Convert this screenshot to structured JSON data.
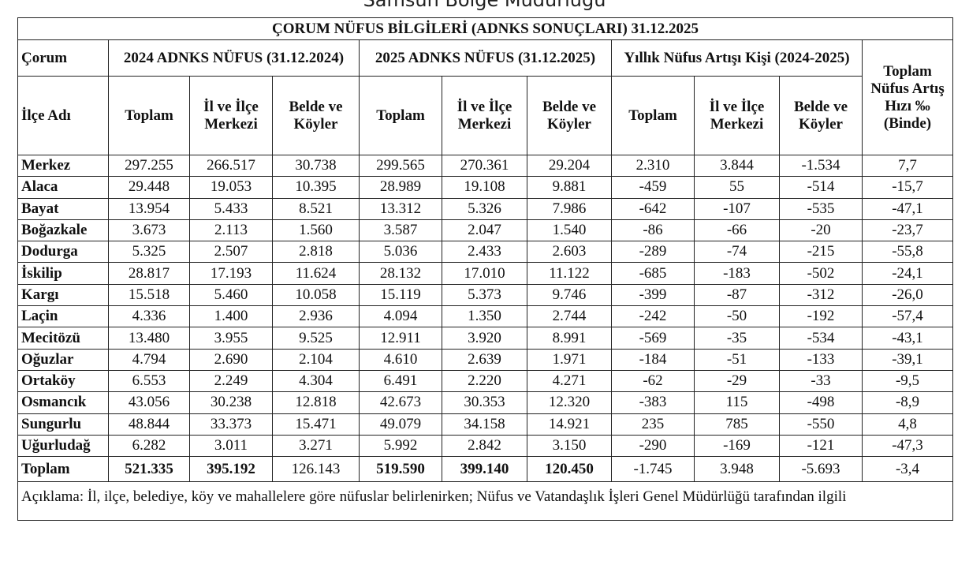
{
  "organization": "Samsun Bölge Müdürlüğü",
  "title": "ÇORUM NÜFUS BİLGİLERİ (ADNKS SONUÇLARI) 31.12.2025",
  "headers": {
    "province": "Çorum",
    "district": "İlçe Adı",
    "group2024": "2024 ADNKS NÜFUS (31.12.2024)",
    "group2025": "2025 ADNKS NÜFUS (31.12.2025)",
    "groupChange": "Yıllık Nüfus Artışı Kişi (2024-2025)",
    "rate": "Toplam Nüfus Artış Hızı ‰ (Binde)",
    "total": "Toplam",
    "center": "İl ve İlçe Merkezi",
    "villages": "Belde ve Köyler"
  },
  "rows": [
    [
      "Merkez",
      "297.255",
      "266.517",
      "30.738",
      "299.565",
      "270.361",
      "29.204",
      "2.310",
      "3.844",
      "-1.534",
      "7,7"
    ],
    [
      "Alaca",
      "29.448",
      "19.053",
      "10.395",
      "28.989",
      "19.108",
      "9.881",
      "-459",
      "55",
      "-514",
      "-15,7"
    ],
    [
      "Bayat",
      "13.954",
      "5.433",
      "8.521",
      "13.312",
      "5.326",
      "7.986",
      "-642",
      "-107",
      "-535",
      "-47,1"
    ],
    [
      "Boğazkale",
      "3.673",
      "2.113",
      "1.560",
      "3.587",
      "2.047",
      "1.540",
      "-86",
      "-66",
      "-20",
      "-23,7"
    ],
    [
      "Dodurga",
      "5.325",
      "2.507",
      "2.818",
      "5.036",
      "2.433",
      "2.603",
      "-289",
      "-74",
      "-215",
      "-55,8"
    ],
    [
      "İskilip",
      "28.817",
      "17.193",
      "11.624",
      "28.132",
      "17.010",
      "11.122",
      "-685",
      "-183",
      "-502",
      "-24,1"
    ],
    [
      "Kargı",
      "15.518",
      "5.460",
      "10.058",
      "15.119",
      "5.373",
      "9.746",
      "-399",
      "-87",
      "-312",
      "-26,0"
    ],
    [
      "Laçin",
      "4.336",
      "1.400",
      "2.936",
      "4.094",
      "1.350",
      "2.744",
      "-242",
      "-50",
      "-192",
      "-57,4"
    ],
    [
      "Mecitözü",
      "13.480",
      "3.955",
      "9.525",
      "12.911",
      "3.920",
      "8.991",
      "-569",
      "-35",
      "-534",
      "-43,1"
    ],
    [
      "Oğuzlar",
      "4.794",
      "2.690",
      "2.104",
      "4.610",
      "2.639",
      "1.971",
      "-184",
      "-51",
      "-133",
      "-39,1"
    ],
    [
      "Ortaköy",
      "6.553",
      "2.249",
      "4.304",
      "6.491",
      "2.220",
      "4.271",
      "-62",
      "-29",
      "-33",
      "-9,5"
    ],
    [
      "Osmancık",
      "43.056",
      "30.238",
      "12.818",
      "42.673",
      "30.353",
      "12.320",
      "-383",
      "115",
      "-498",
      "-8,9"
    ],
    [
      "Sungurlu",
      "48.844",
      "33.373",
      "15.471",
      "49.079",
      "34.158",
      "14.921",
      "235",
      "785",
      "-550",
      "4,8"
    ],
    [
      "Uğurludağ",
      "6.282",
      "3.011",
      "3.271",
      "5.992",
      "2.842",
      "3.150",
      "-290",
      "-169",
      "-121",
      "-47,3"
    ]
  ],
  "totalRow": [
    "Toplam",
    "521.335",
    "395.192",
    "126.143",
    "519.590",
    "399.140",
    "120.450",
    "-1.745",
    "3.948",
    "-5.693",
    "-3,4"
  ],
  "note": "Açıklama: İl, ilçe, belediye, köy ve mahallelere göre nüfuslar belirlenirken; Nüfus ve Vatandaşlık İşleri Genel Müdürlüğü tarafından ilgili"
}
